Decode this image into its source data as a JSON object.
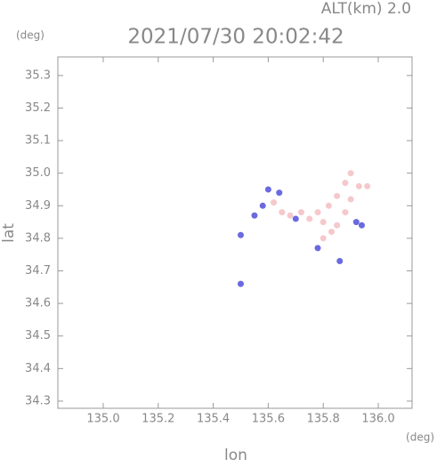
{
  "chart_data": {
    "type": "scatter",
    "title": "2021/07/30 20:02:42",
    "altitude_label": "ALT(km) 2.0",
    "y_unit": "(deg)",
    "x_unit": "(deg)",
    "xlabel": "lon",
    "ylabel": "lat",
    "xlim": [
      134.835,
      136.123
    ],
    "ylim": [
      34.278,
      35.357
    ],
    "xticks": [
      {
        "value": 135.0,
        "label": "135.0"
      },
      135.2,
      135.4,
      135.6,
      135.8,
      {
        "value": 136.0,
        "label": "136.0"
      }
    ],
    "yticks": [
      35.3,
      35.2,
      35.1,
      {
        "value": 35.0,
        "label": "35.0"
      },
      34.9,
      34.8,
      34.7,
      34.6,
      34.5,
      34.4,
      34.3
    ],
    "series": [
      {
        "color": "#f5c8cc",
        "x": [
          135.9,
          135.88,
          135.85,
          135.82,
          135.78,
          135.75,
          135.8,
          135.85,
          135.88,
          135.9,
          135.93,
          135.96,
          135.72,
          135.68,
          135.8,
          135.83,
          135.62,
          135.65
        ],
        "y": [
          35.0,
          34.97,
          34.93,
          34.9,
          34.88,
          34.86,
          34.85,
          34.84,
          34.88,
          34.92,
          34.96,
          34.96,
          34.88,
          34.87,
          34.8,
          34.82,
          34.91,
          34.88
        ]
      },
      {
        "color": "#6a6ae0",
        "x": [
          135.6,
          135.58,
          135.64,
          135.55,
          135.5,
          135.5,
          135.86,
          135.92,
          135.7,
          135.78,
          135.94
        ],
        "y": [
          34.95,
          34.9,
          34.94,
          34.87,
          34.81,
          34.66,
          34.73,
          34.85,
          34.86,
          34.77,
          34.84
        ]
      }
    ]
  }
}
